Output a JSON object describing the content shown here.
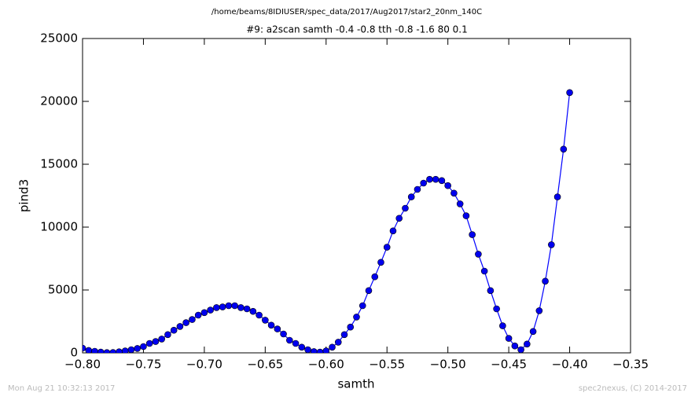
{
  "chart_data": {
    "type": "line",
    "title": "/home/beams/8IDIUSER/spec_data/2017/Aug2017/star2_20nm_140C",
    "subtitle": "#9: a2scan  samth -0.4 -0.8  tth -0.8 -1.6  80 0.1",
    "x_label": "samth",
    "y_label": "pind3",
    "footer_left": "Mon Aug 21 10:32:13 2017",
    "footer_right": "spec2nexus, (C) 2014-2017",
    "x": [
      -0.8,
      -0.795,
      -0.79,
      -0.785,
      -0.78,
      -0.775,
      -0.77,
      -0.765,
      -0.76,
      -0.755,
      -0.75,
      -0.745,
      -0.74,
      -0.735,
      -0.73,
      -0.725,
      -0.72,
      -0.715,
      -0.71,
      -0.705,
      -0.7,
      -0.695,
      -0.69,
      -0.685,
      -0.68,
      -0.675,
      -0.67,
      -0.665,
      -0.66,
      -0.655,
      -0.65,
      -0.645,
      -0.64,
      -0.635,
      -0.63,
      -0.625,
      -0.62,
      -0.615,
      -0.61,
      -0.605,
      -0.6,
      -0.595,
      -0.59,
      -0.585,
      -0.58,
      -0.575,
      -0.57,
      -0.565,
      -0.56,
      -0.555,
      -0.55,
      -0.545,
      -0.54,
      -0.535,
      -0.53,
      -0.525,
      -0.52,
      -0.515,
      -0.51,
      -0.505,
      -0.5,
      -0.495,
      -0.49,
      -0.485,
      -0.48,
      -0.475,
      -0.47,
      -0.465,
      -0.46,
      -0.455,
      -0.45,
      -0.445,
      -0.44,
      -0.435,
      -0.43,
      -0.425,
      -0.42,
      -0.415,
      -0.41,
      -0.405,
      -0.4
    ],
    "series": [
      {
        "name": "pind3",
        "color": "#0000ff",
        "marker_color": "#0000ee",
        "values": [
          375,
          190,
          125,
          60,
          20,
          30,
          80,
          150,
          250,
          350,
          500,
          750,
          900,
          1100,
          1450,
          1800,
          2100,
          2400,
          2650,
          3000,
          3200,
          3400,
          3600,
          3650,
          3750,
          3750,
          3600,
          3500,
          3300,
          3000,
          2600,
          2200,
          1900,
          1500,
          1000,
          750,
          450,
          250,
          100,
          60,
          150,
          450,
          850,
          1450,
          2050,
          2850,
          3750,
          4950,
          6050,
          7200,
          8400,
          9700,
          10700,
          11500,
          12400,
          13000,
          13500,
          13800,
          13800,
          13700,
          13300,
          12700,
          11850,
          10900,
          9400,
          7850,
          6500,
          4950,
          3500,
          2150,
          1150,
          550,
          250,
          700,
          1700,
          3350,
          5700,
          8600,
          12400,
          16200,
          20700
        ]
      }
    ],
    "xlim": [
      -0.8,
      -0.35
    ],
    "xticks": [
      {
        "value": -0.8,
        "label": "−0.80"
      },
      {
        "value": -0.75,
        "label": "−0.75"
      },
      {
        "value": -0.7,
        "label": "−0.70"
      },
      {
        "value": -0.65,
        "label": "−0.65"
      },
      {
        "value": -0.6,
        "label": "−0.60"
      },
      {
        "value": -0.55,
        "label": "−0.55"
      },
      {
        "value": -0.5,
        "label": "−0.50"
      },
      {
        "value": -0.45,
        "label": "−0.45"
      },
      {
        "value": -0.4,
        "label": "−0.40"
      },
      {
        "value": -0.35,
        "label": "−0.35"
      }
    ],
    "ylim": [
      0,
      25000
    ],
    "yticks": [
      0,
      5000,
      10000,
      15000,
      20000,
      25000
    ],
    "grid": false
  }
}
